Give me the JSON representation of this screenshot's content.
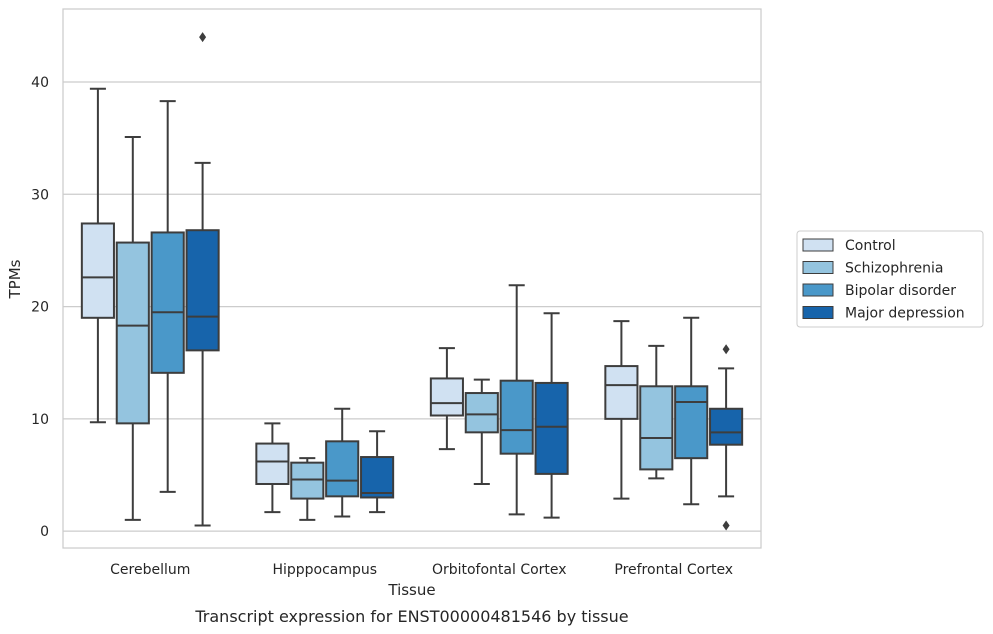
{
  "chart_data": {
    "type": "boxplot",
    "title": "",
    "caption": "Transcript expression for ENST00000481546 by tissue",
    "xlabel": "Tissue",
    "ylabel": "TPMs",
    "ylim": [
      -1.5,
      46.5
    ],
    "yticks": [
      0,
      10,
      20,
      30,
      40
    ],
    "grid": "horizontal",
    "legend_position": "right",
    "categories": [
      "Cerebellum",
      "Hipppocampus",
      "Orbitofontal Cortex",
      "Prefrontal Cortex"
    ],
    "series": [
      {
        "name": "Control",
        "color": "#d0e1f2",
        "boxes": [
          {
            "whisker_low": 9.7,
            "q1": 19.0,
            "median": 22.6,
            "q3": 27.4,
            "whisker_high": 39.4,
            "outliers": []
          },
          {
            "whisker_low": 1.7,
            "q1": 4.2,
            "median": 6.2,
            "q3": 7.8,
            "whisker_high": 9.6,
            "outliers": []
          },
          {
            "whisker_low": 7.3,
            "q1": 10.3,
            "median": 11.4,
            "q3": 13.6,
            "whisker_high": 16.3,
            "outliers": []
          },
          {
            "whisker_low": 2.9,
            "q1": 10.0,
            "median": 13.0,
            "q3": 14.7,
            "whisker_high": 18.7,
            "outliers": []
          }
        ]
      },
      {
        "name": "Schizophrenia",
        "color": "#94c4df",
        "boxes": [
          {
            "whisker_low": 1.0,
            "q1": 9.6,
            "median": 18.3,
            "q3": 25.7,
            "whisker_high": 35.1,
            "outliers": []
          },
          {
            "whisker_low": 1.0,
            "q1": 2.9,
            "median": 4.6,
            "q3": 6.1,
            "whisker_high": 6.5,
            "outliers": []
          },
          {
            "whisker_low": 4.2,
            "q1": 8.8,
            "median": 10.4,
            "q3": 12.3,
            "whisker_high": 13.5,
            "outliers": []
          },
          {
            "whisker_low": 4.7,
            "q1": 5.5,
            "median": 8.3,
            "q3": 12.9,
            "whisker_high": 16.5,
            "outliers": []
          }
        ]
      },
      {
        "name": "Bipolar disorder",
        "color": "#4a98c9",
        "boxes": [
          {
            "whisker_low": 3.5,
            "q1": 14.1,
            "median": 19.5,
            "q3": 26.6,
            "whisker_high": 38.3,
            "outliers": []
          },
          {
            "whisker_low": 1.3,
            "q1": 3.1,
            "median": 4.5,
            "q3": 8.0,
            "whisker_high": 10.9,
            "outliers": []
          },
          {
            "whisker_low": 1.5,
            "q1": 6.9,
            "median": 9.0,
            "q3": 13.4,
            "whisker_high": 21.9,
            "outliers": []
          },
          {
            "whisker_low": 2.4,
            "q1": 6.5,
            "median": 11.5,
            "q3": 12.9,
            "whisker_high": 19.0,
            "outliers": []
          }
        ]
      },
      {
        "name": "Major depression",
        "color": "#1764ab",
        "boxes": [
          {
            "whisker_low": 0.5,
            "q1": 16.1,
            "median": 19.1,
            "q3": 26.8,
            "whisker_high": 32.8,
            "outliers": [
              44.0
            ]
          },
          {
            "whisker_low": 1.7,
            "q1": 3.0,
            "median": 3.4,
            "q3": 6.6,
            "whisker_high": 8.9,
            "outliers": []
          },
          {
            "whisker_low": 1.2,
            "q1": 5.1,
            "median": 9.3,
            "q3": 13.2,
            "whisker_high": 19.4,
            "outliers": []
          },
          {
            "whisker_low": 3.1,
            "q1": 7.7,
            "median": 8.8,
            "q3": 10.9,
            "whisker_high": 14.5,
            "outliers": [
              16.2,
              0.5
            ]
          }
        ]
      }
    ]
  }
}
